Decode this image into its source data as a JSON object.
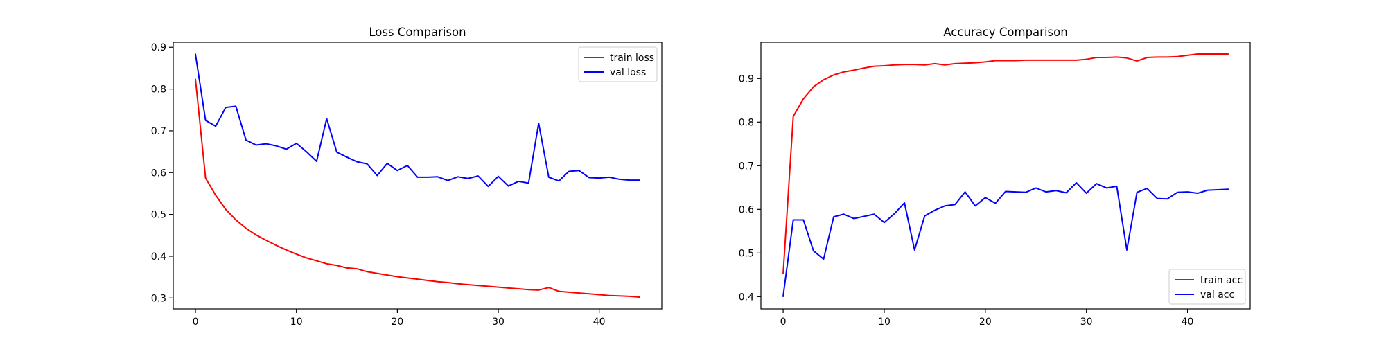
{
  "chart_data": [
    {
      "type": "line",
      "title": "Loss Comparison",
      "xlabel": "",
      "ylabel": "",
      "xlim": [
        -2.2,
        46.2
      ],
      "ylim": [
        0.274,
        0.912
      ],
      "xticks": [
        0,
        10,
        20,
        30,
        40
      ],
      "yticks": [
        0.3,
        0.4,
        0.5,
        0.6,
        0.7,
        0.8,
        0.9
      ],
      "ytick_format": 1,
      "grid": false,
      "legend": "upper right",
      "x": [
        0,
        1,
        2,
        3,
        4,
        5,
        6,
        7,
        8,
        9,
        10,
        11,
        12,
        13,
        14,
        15,
        16,
        17,
        18,
        19,
        20,
        21,
        22,
        23,
        24,
        25,
        26,
        27,
        28,
        29,
        30,
        31,
        32,
        33,
        34,
        35,
        36,
        37,
        38,
        39,
        40,
        41,
        42,
        43,
        44
      ],
      "series": [
        {
          "name": "train loss",
          "color": "#ff0000",
          "values": [
            0.823,
            0.587,
            0.546,
            0.512,
            0.487,
            0.467,
            0.451,
            0.438,
            0.426,
            0.415,
            0.405,
            0.396,
            0.389,
            0.382,
            0.378,
            0.372,
            0.37,
            0.363,
            0.359,
            0.355,
            0.351,
            0.348,
            0.345,
            0.342,
            0.339,
            0.337,
            0.334,
            0.332,
            0.33,
            0.328,
            0.326,
            0.324,
            0.322,
            0.32,
            0.319,
            0.325,
            0.316,
            0.314,
            0.312,
            0.31,
            0.308,
            0.306,
            0.305,
            0.304,
            0.302
          ]
        },
        {
          "name": "val loss",
          "color": "#0000ff",
          "values": [
            0.883,
            0.725,
            0.711,
            0.756,
            0.759,
            0.678,
            0.666,
            0.669,
            0.664,
            0.656,
            0.67,
            0.65,
            0.627,
            0.729,
            0.649,
            0.637,
            0.626,
            0.621,
            0.593,
            0.622,
            0.605,
            0.617,
            0.589,
            0.589,
            0.59,
            0.581,
            0.59,
            0.586,
            0.592,
            0.567,
            0.591,
            0.568,
            0.579,
            0.575,
            0.718,
            0.589,
            0.58,
            0.603,
            0.605,
            0.588,
            0.587,
            0.589,
            0.584,
            0.582,
            0.582
          ]
        }
      ]
    },
    {
      "type": "line",
      "title": "Accuracy Comparison",
      "xlabel": "",
      "ylabel": "",
      "xlim": [
        -2.2,
        46.2
      ],
      "ylim": [
        0.372,
        0.983
      ],
      "xticks": [
        0,
        10,
        20,
        30,
        40
      ],
      "yticks": [
        0.4,
        0.5,
        0.6,
        0.7,
        0.8,
        0.9
      ],
      "ytick_format": 1,
      "grid": false,
      "legend": "lower right",
      "x": [
        0,
        1,
        2,
        3,
        4,
        5,
        6,
        7,
        8,
        9,
        10,
        11,
        12,
        13,
        14,
        15,
        16,
        17,
        18,
        19,
        20,
        21,
        22,
        23,
        24,
        25,
        26,
        27,
        28,
        29,
        30,
        31,
        32,
        33,
        34,
        35,
        36,
        37,
        38,
        39,
        40,
        41,
        42,
        43,
        44
      ],
      "series": [
        {
          "name": "train acc",
          "color": "#ff0000",
          "values": [
            0.453,
            0.813,
            0.853,
            0.881,
            0.897,
            0.908,
            0.915,
            0.919,
            0.924,
            0.928,
            0.929,
            0.931,
            0.932,
            0.932,
            0.931,
            0.934,
            0.931,
            0.934,
            0.935,
            0.936,
            0.938,
            0.941,
            0.941,
            0.941,
            0.942,
            0.942,
            0.942,
            0.942,
            0.942,
            0.942,
            0.944,
            0.948,
            0.948,
            0.949,
            0.947,
            0.94,
            0.948,
            0.949,
            0.949,
            0.95,
            0.953,
            0.956,
            0.956,
            0.956,
            0.956
          ]
        },
        {
          "name": "val acc",
          "color": "#0000ff",
          "values": [
            0.401,
            0.576,
            0.576,
            0.505,
            0.486,
            0.583,
            0.589,
            0.579,
            0.584,
            0.589,
            0.57,
            0.59,
            0.615,
            0.507,
            0.585,
            0.598,
            0.608,
            0.611,
            0.64,
            0.608,
            0.627,
            0.614,
            0.641,
            0.64,
            0.639,
            0.649,
            0.64,
            0.643,
            0.638,
            0.661,
            0.637,
            0.659,
            0.649,
            0.653,
            0.507,
            0.639,
            0.648,
            0.625,
            0.624,
            0.639,
            0.64,
            0.637,
            0.644,
            0.645,
            0.646
          ]
        }
      ]
    }
  ]
}
